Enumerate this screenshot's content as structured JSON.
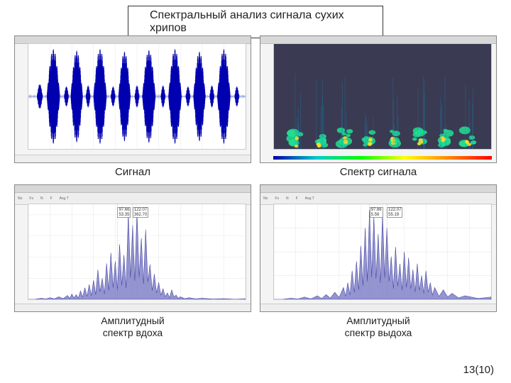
{
  "title": "Спектральный анализ сигнала сухих хрипов",
  "pageNum": "13(10)",
  "captions": {
    "topLeft": "Сигнал",
    "topRight": "Спектр сигнала",
    "bottomLeft": "Амплитудный\nспектр вдоха",
    "bottomRight": "Амплитудный\nспектр выдоха"
  },
  "waveform": {
    "color": "#0000b0",
    "centerline": "#6699cc",
    "baseline": 0.5,
    "bursts": [
      {
        "x": 0.04,
        "w": 0.025,
        "amp": 0.25
      },
      {
        "x": 0.085,
        "w": 0.06,
        "amp": 0.95
      },
      {
        "x": 0.165,
        "w": 0.02,
        "amp": 0.2
      },
      {
        "x": 0.195,
        "w": 0.055,
        "amp": 0.92
      },
      {
        "x": 0.265,
        "w": 0.02,
        "amp": 0.22
      },
      {
        "x": 0.3,
        "w": 0.06,
        "amp": 0.95
      },
      {
        "x": 0.38,
        "w": 0.02,
        "amp": 0.2
      },
      {
        "x": 0.415,
        "w": 0.055,
        "amp": 0.9
      },
      {
        "x": 0.49,
        "w": 0.02,
        "amp": 0.22
      },
      {
        "x": 0.525,
        "w": 0.06,
        "amp": 0.93
      },
      {
        "x": 0.61,
        "w": 0.02,
        "amp": 0.22
      },
      {
        "x": 0.645,
        "w": 0.06,
        "amp": 0.95
      },
      {
        "x": 0.725,
        "w": 0.02,
        "amp": 0.2
      },
      {
        "x": 0.76,
        "w": 0.055,
        "amp": 0.9
      },
      {
        "x": 0.835,
        "w": 0.02,
        "amp": 0.22
      },
      {
        "x": 0.87,
        "w": 0.06,
        "amp": 0.95
      },
      {
        "x": 0.95,
        "w": 0.02,
        "amp": 0.2
      }
    ]
  },
  "spectrogram": {
    "bg": "#3a3a52",
    "events": [
      {
        "x": 0.08,
        "w": 0.045
      },
      {
        "x": 0.19,
        "w": 0.045
      },
      {
        "x": 0.3,
        "w": 0.05
      },
      {
        "x": 0.415,
        "w": 0.045
      },
      {
        "x": 0.525,
        "w": 0.05
      },
      {
        "x": 0.645,
        "w": 0.05
      },
      {
        "x": 0.76,
        "w": 0.045
      },
      {
        "x": 0.87,
        "w": 0.05
      }
    ],
    "streak_color_hot": "#ffe020",
    "streak_color_mid": "#20e090",
    "streak_color_low": "#1090c0"
  },
  "inhaleSpectrum": {
    "fill": "#7070c0",
    "stroke": "#3a3aa0",
    "ylim": [
      0,
      450
    ],
    "ytick": 100,
    "xlim": [
      0,
      100
    ],
    "xtick": 10,
    "xmax": 100,
    "peaks": [
      {
        "label": "97.66\n53.35",
        "x": 41
      },
      {
        "label": "122.07\n362.70",
        "x": 48
      }
    ],
    "points": [
      [
        0,
        0
      ],
      [
        6,
        5
      ],
      [
        10,
        8
      ],
      [
        14,
        12
      ],
      [
        18,
        18
      ],
      [
        20,
        25
      ],
      [
        22,
        22
      ],
      [
        24,
        40
      ],
      [
        26,
        55
      ],
      [
        28,
        70
      ],
      [
        30,
        90
      ],
      [
        32,
        140
      ],
      [
        34,
        100
      ],
      [
        36,
        170
      ],
      [
        38,
        220
      ],
      [
        40,
        180
      ],
      [
        42,
        260
      ],
      [
        44,
        210
      ],
      [
        46,
        410
      ],
      [
        48,
        350
      ],
      [
        50,
        420
      ],
      [
        52,
        290
      ],
      [
        54,
        330
      ],
      [
        56,
        165
      ],
      [
        58,
        120
      ],
      [
        60,
        80
      ],
      [
        62,
        50
      ],
      [
        64,
        30
      ],
      [
        66,
        45
      ],
      [
        68,
        20
      ],
      [
        70,
        12
      ],
      [
        74,
        8
      ],
      [
        80,
        5
      ],
      [
        90,
        3
      ],
      [
        100,
        2
      ]
    ]
  },
  "exhaleSpectrum": {
    "fill": "#7070c0",
    "stroke": "#3a3aa0",
    "ylim": [
      0,
      80
    ],
    "ytick": 20,
    "xlim": [
      0,
      100
    ],
    "xtick": 10,
    "xmax": 100,
    "peaks": [
      {
        "label": "97.66\n5.56",
        "x": 44
      },
      {
        "label": "122.07\n55.19",
        "x": 52
      }
    ],
    "points": [
      [
        0,
        0
      ],
      [
        8,
        1
      ],
      [
        14,
        2
      ],
      [
        20,
        3
      ],
      [
        24,
        4
      ],
      [
        28,
        6
      ],
      [
        32,
        10
      ],
      [
        34,
        14
      ],
      [
        36,
        24
      ],
      [
        38,
        32
      ],
      [
        40,
        45
      ],
      [
        42,
        60
      ],
      [
        44,
        75
      ],
      [
        46,
        70
      ],
      [
        48,
        55
      ],
      [
        50,
        72
      ],
      [
        52,
        60
      ],
      [
        54,
        36
      ],
      [
        56,
        44
      ],
      [
        58,
        30
      ],
      [
        60,
        40
      ],
      [
        62,
        35
      ],
      [
        64,
        25
      ],
      [
        66,
        30
      ],
      [
        68,
        20
      ],
      [
        70,
        24
      ],
      [
        72,
        14
      ],
      [
        74,
        10
      ],
      [
        78,
        8
      ],
      [
        82,
        5
      ],
      [
        88,
        3
      ],
      [
        100,
        2
      ]
    ]
  }
}
